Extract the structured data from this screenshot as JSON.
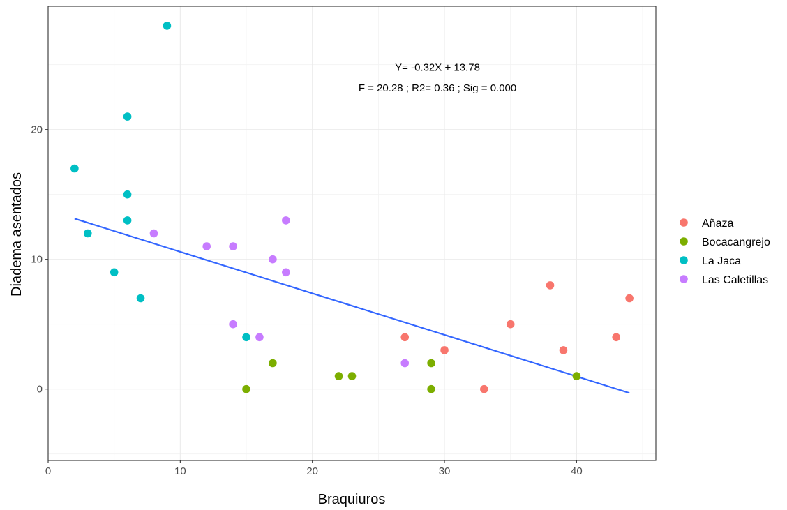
{
  "chart_data": {
    "type": "scatter",
    "title": "",
    "xlabel": "Braquiuros",
    "ylabel": "Diadema asentados",
    "xlim": [
      0,
      46
    ],
    "ylim": [
      -5.5,
      29.5
    ],
    "x_ticks": [
      0,
      10,
      20,
      30,
      40
    ],
    "y_ticks": [
      0,
      10,
      20
    ],
    "grid": true,
    "legend_position": "right",
    "annotations": [
      {
        "text": "Y= -0.32X + 13.78",
        "x": 30,
        "y": 24.8
      },
      {
        "text": "F = 20.28 ; R2= 0.36 ; Sig = 0.000",
        "x": 30,
        "y": 23.2
      }
    ],
    "series": [
      {
        "name": "Añaza",
        "color": "#F8766D",
        "points": [
          [
            27,
            4
          ],
          [
            30,
            3
          ],
          [
            33,
            0
          ],
          [
            35,
            5
          ],
          [
            38,
            8
          ],
          [
            39,
            3
          ],
          [
            43,
            4
          ],
          [
            44,
            7
          ]
        ]
      },
      {
        "name": "Bocacangrejo",
        "color": "#7CAE00",
        "points": [
          [
            15,
            0
          ],
          [
            17,
            2
          ],
          [
            22,
            1
          ],
          [
            23,
            1
          ],
          [
            29,
            2
          ],
          [
            29,
            0
          ],
          [
            40,
            1
          ]
        ]
      },
      {
        "name": "La Jaca",
        "color": "#00BFC4",
        "points": [
          [
            2,
            17
          ],
          [
            3,
            12
          ],
          [
            5,
            9
          ],
          [
            6,
            21
          ],
          [
            6,
            15
          ],
          [
            6,
            13
          ],
          [
            7,
            7
          ],
          [
            9,
            28
          ],
          [
            15,
            4
          ]
        ]
      },
      {
        "name": "Las Caletillas",
        "color": "#C77CFF",
        "points": [
          [
            8,
            12
          ],
          [
            12,
            11
          ],
          [
            14,
            11
          ],
          [
            14,
            5
          ],
          [
            16,
            4
          ],
          [
            17,
            10
          ],
          [
            18,
            13
          ],
          [
            18,
            9
          ],
          [
            27,
            2
          ]
        ]
      }
    ],
    "regression_line": {
      "color": "#3366FF",
      "points": [
        [
          2,
          13.14
        ],
        [
          44,
          -0.3
        ]
      ]
    }
  }
}
